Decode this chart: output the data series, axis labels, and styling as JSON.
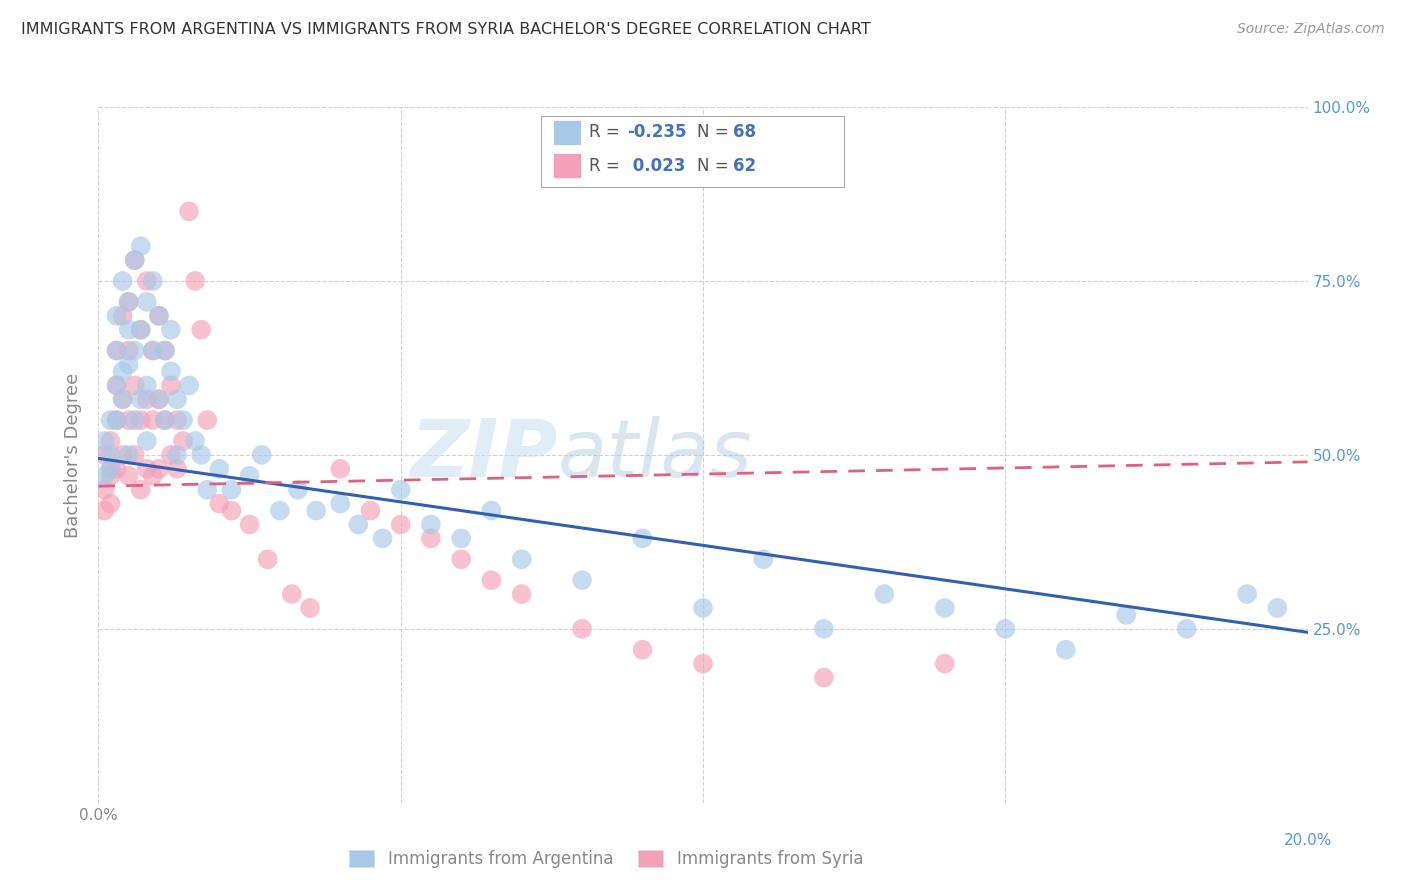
{
  "title": "IMMIGRANTS FROM ARGENTINA VS IMMIGRANTS FROM SYRIA BACHELOR'S DEGREE CORRELATION CHART",
  "source": "Source: ZipAtlas.com",
  "ylabel": "Bachelor's Degree",
  "x_min": 0.0,
  "x_max": 0.2,
  "y_min": 0.0,
  "y_max": 1.0,
  "watermark_zip": "ZIP",
  "watermark_atlas": "atlas",
  "argentina_color": "#a8c8e8",
  "syria_color": "#f4a0b8",
  "argentina_line_color": "#3060b0",
  "syria_line_color": "#e06080",
  "background_color": "#ffffff",
  "grid_color": "#cccccc",
  "title_color": "#333333",
  "axis_label_color": "#888888",
  "right_axis_color": "#5599cc",
  "legend_r_argentina": "-0.235",
  "legend_n_argentina": "68",
  "legend_r_syria": "0.023",
  "legend_n_syria": "62",
  "legend_label_argentina": "Immigrants from Argentina",
  "legend_label_syria": "Immigrants from Syria",
  "argentina_scatter_x": [
    0.001,
    0.001,
    0.002,
    0.002,
    0.002,
    0.003,
    0.003,
    0.003,
    0.003,
    0.004,
    0.004,
    0.004,
    0.005,
    0.005,
    0.005,
    0.005,
    0.006,
    0.006,
    0.006,
    0.007,
    0.007,
    0.007,
    0.008,
    0.008,
    0.008,
    0.009,
    0.009,
    0.01,
    0.01,
    0.011,
    0.011,
    0.012,
    0.012,
    0.013,
    0.013,
    0.014,
    0.015,
    0.016,
    0.017,
    0.018,
    0.02,
    0.022,
    0.025,
    0.027,
    0.03,
    0.033,
    0.036,
    0.04,
    0.043,
    0.047,
    0.05,
    0.055,
    0.06,
    0.065,
    0.07,
    0.08,
    0.09,
    0.1,
    0.11,
    0.12,
    0.13,
    0.14,
    0.15,
    0.16,
    0.17,
    0.18,
    0.19,
    0.195
  ],
  "argentina_scatter_y": [
    0.47,
    0.52,
    0.48,
    0.55,
    0.5,
    0.6,
    0.65,
    0.7,
    0.55,
    0.62,
    0.58,
    0.75,
    0.68,
    0.72,
    0.63,
    0.5,
    0.78,
    0.65,
    0.55,
    0.8,
    0.68,
    0.58,
    0.72,
    0.6,
    0.52,
    0.75,
    0.65,
    0.7,
    0.58,
    0.65,
    0.55,
    0.62,
    0.68,
    0.58,
    0.5,
    0.55,
    0.6,
    0.52,
    0.5,
    0.45,
    0.48,
    0.45,
    0.47,
    0.5,
    0.42,
    0.45,
    0.42,
    0.43,
    0.4,
    0.38,
    0.45,
    0.4,
    0.38,
    0.42,
    0.35,
    0.32,
    0.38,
    0.28,
    0.35,
    0.25,
    0.3,
    0.28,
    0.25,
    0.22,
    0.27,
    0.25,
    0.3,
    0.28
  ],
  "syria_scatter_x": [
    0.001,
    0.001,
    0.001,
    0.002,
    0.002,
    0.002,
    0.002,
    0.003,
    0.003,
    0.003,
    0.003,
    0.004,
    0.004,
    0.004,
    0.005,
    0.005,
    0.005,
    0.005,
    0.006,
    0.006,
    0.006,
    0.007,
    0.007,
    0.007,
    0.008,
    0.008,
    0.008,
    0.009,
    0.009,
    0.009,
    0.01,
    0.01,
    0.01,
    0.011,
    0.011,
    0.012,
    0.012,
    0.013,
    0.013,
    0.014,
    0.015,
    0.016,
    0.017,
    0.018,
    0.02,
    0.022,
    0.025,
    0.028,
    0.032,
    0.035,
    0.04,
    0.045,
    0.05,
    0.055,
    0.06,
    0.065,
    0.07,
    0.08,
    0.09,
    0.1,
    0.12,
    0.14
  ],
  "syria_scatter_y": [
    0.45,
    0.5,
    0.42,
    0.47,
    0.52,
    0.48,
    0.43,
    0.55,
    0.6,
    0.48,
    0.65,
    0.5,
    0.7,
    0.58,
    0.72,
    0.55,
    0.47,
    0.65,
    0.78,
    0.6,
    0.5,
    0.68,
    0.55,
    0.45,
    0.75,
    0.58,
    0.48,
    0.65,
    0.55,
    0.47,
    0.7,
    0.58,
    0.48,
    0.65,
    0.55,
    0.6,
    0.5,
    0.55,
    0.48,
    0.52,
    0.85,
    0.75,
    0.68,
    0.55,
    0.43,
    0.42,
    0.4,
    0.35,
    0.3,
    0.28,
    0.48,
    0.42,
    0.4,
    0.38,
    0.35,
    0.32,
    0.3,
    0.25,
    0.22,
    0.2,
    0.18,
    0.2
  ],
  "arg_trend_x0": 0.0,
  "arg_trend_y0": 0.495,
  "arg_trend_x1": 0.2,
  "arg_trend_y1": 0.245,
  "syr_trend_x0": 0.0,
  "syr_trend_y0": 0.455,
  "syr_trend_x1": 0.2,
  "syr_trend_y1": 0.49
}
